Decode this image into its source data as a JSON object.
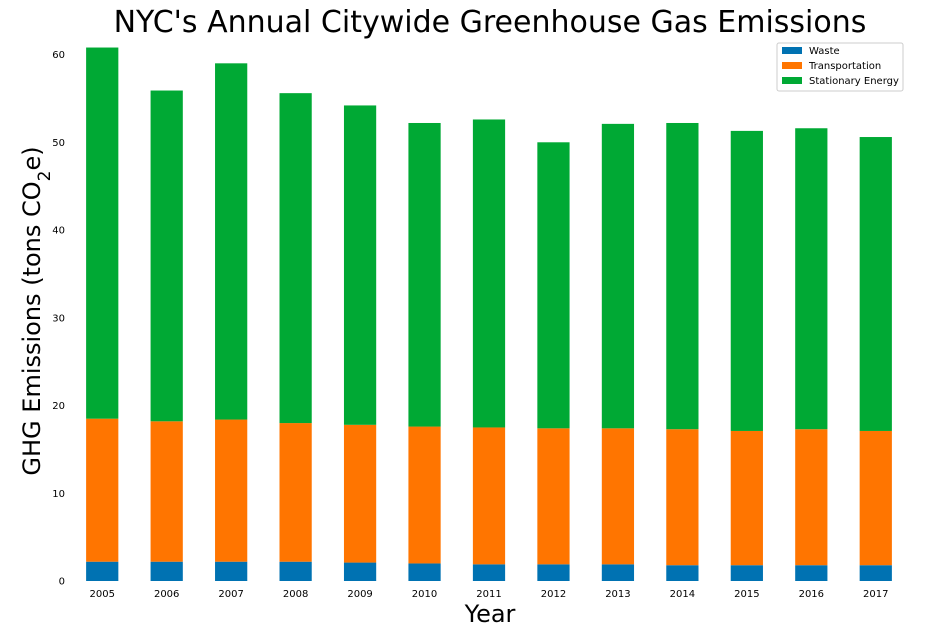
{
  "chart_data": {
    "type": "bar",
    "stacked": true,
    "title": "NYC's Annual Citywide Greenhouse Gas Emissions",
    "xlabel": "Year",
    "ylabel": {
      "text": "GHG Emissions (tons CO",
      "subscript": "2",
      "suffix": "e)"
    },
    "ylim": [
      0,
      62
    ],
    "yticks": [
      0,
      10,
      20,
      30,
      40,
      50,
      60
    ],
    "legend_position": "top-right",
    "grid": false,
    "categories": [
      "2005",
      "2006",
      "2007",
      "2008",
      "2009",
      "2010",
      "2011",
      "2012",
      "2013",
      "2014",
      "2015",
      "2016",
      "2017"
    ],
    "series": [
      {
        "name": "Waste",
        "color": "#0072b2",
        "values": [
          2.2,
          2.2,
          2.2,
          2.2,
          2.1,
          2.0,
          1.9,
          1.9,
          1.9,
          1.8,
          1.8,
          1.8,
          1.8
        ]
      },
      {
        "name": "Transportation",
        "color": "#ff7500",
        "values": [
          16.3,
          16.0,
          16.2,
          15.8,
          15.7,
          15.6,
          15.6,
          15.5,
          15.5,
          15.5,
          15.3,
          15.5,
          15.3
        ]
      },
      {
        "name": "Stationary Energy",
        "color": "#00a934",
        "values": [
          42.3,
          37.7,
          40.6,
          37.6,
          36.4,
          34.6,
          35.1,
          32.6,
          34.7,
          34.9,
          34.2,
          34.3,
          33.5
        ]
      }
    ]
  }
}
